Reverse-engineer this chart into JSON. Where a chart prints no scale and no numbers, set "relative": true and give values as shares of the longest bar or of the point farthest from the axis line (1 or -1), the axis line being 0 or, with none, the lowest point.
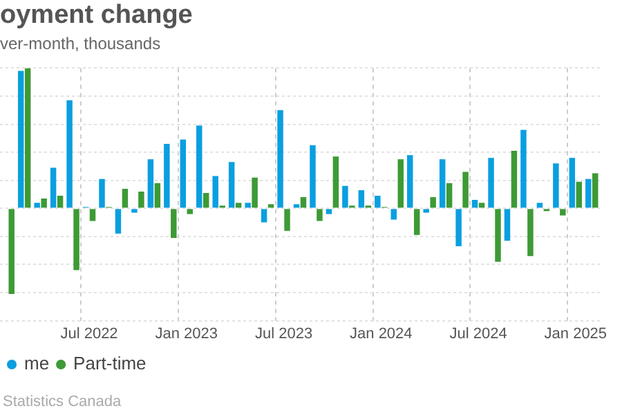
{
  "chart_data": {
    "type": "bar",
    "title": "oyment change",
    "subtitle": "ver-month, thousands",
    "categories": [
      null,
      null,
      null,
      null,
      null,
      "Jul 2022",
      null,
      null,
      null,
      null,
      null,
      "Jan 2023",
      null,
      null,
      null,
      null,
      null,
      "Jul 2023",
      null,
      null,
      null,
      null,
      null,
      "Jan 2024",
      null,
      null,
      null,
      null,
      null,
      "Jul 2024",
      null,
      null,
      null,
      null,
      null,
      "Jan 2025",
      null
    ],
    "relative": true,
    "series": [
      {
        "name": "me",
        "color": "#0a9fe0",
        "values": [
          null,
          0.98,
          0.04,
          0.29,
          0.77,
          0.01,
          0.21,
          -0.18,
          -0.03,
          0.35,
          0.46,
          0.49,
          0.59,
          0.23,
          0.33,
          0.04,
          -0.1,
          0.7,
          0.03,
          0.45,
          -0.04,
          0.16,
          0.13,
          0.09,
          -0.08,
          0.38,
          -0.03,
          0.35,
          -0.27,
          0.06,
          0.36,
          -0.23,
          0.56,
          0.04,
          0.32,
          0.36,
          0.21
        ]
      },
      {
        "name": "Part-time",
        "color": "#3d9a35",
        "values": [
          -0.61,
          1,
          0.07,
          0.09,
          -0.44,
          -0.09,
          0.01,
          0.14,
          0.12,
          0.18,
          -0.21,
          -0.04,
          0.11,
          0.02,
          0.04,
          0.22,
          0.03,
          -0.16,
          0.08,
          -0.09,
          0.37,
          0.02,
          0.02,
          0.01,
          0.35,
          -0.19,
          0.08,
          0.18,
          0.26,
          0.04,
          -0.38,
          0.41,
          -0.34,
          -0.02,
          -0.05,
          0.19,
          0.25
        ]
      }
    ],
    "grid": true,
    "legend": "bottom left",
    "annotations": [
      "Statistics Canada"
    ]
  }
}
